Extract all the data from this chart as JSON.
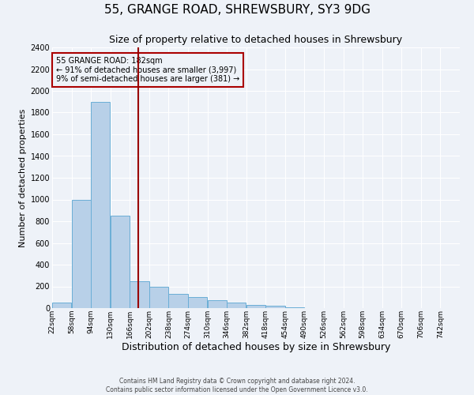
{
  "title": "55, GRANGE ROAD, SHREWSBURY, SY3 9DG",
  "subtitle": "Size of property relative to detached houses in Shrewsbury",
  "xlabel": "Distribution of detached houses by size in Shrewsbury",
  "ylabel": "Number of detached properties",
  "bin_labels": [
    "22sqm",
    "58sqm",
    "94sqm",
    "130sqm",
    "166sqm",
    "202sqm",
    "238sqm",
    "274sqm",
    "310sqm",
    "346sqm",
    "382sqm",
    "418sqm",
    "454sqm",
    "490sqm",
    "526sqm",
    "562sqm",
    "598sqm",
    "634sqm",
    "670sqm",
    "706sqm",
    "742sqm"
  ],
  "bin_edges": [
    22,
    58,
    94,
    130,
    166,
    202,
    238,
    274,
    310,
    346,
    382,
    418,
    454,
    490,
    526,
    562,
    598,
    634,
    670,
    706,
    742
  ],
  "bar_heights": [
    50,
    1000,
    1900,
    850,
    250,
    200,
    130,
    100,
    75,
    50,
    30,
    20,
    5,
    0,
    0,
    0,
    0,
    0,
    0,
    0
  ],
  "bar_color": "#b8d0e8",
  "bar_edgecolor": "#6aaed6",
  "vline_x": 182,
  "vline_color": "#990000",
  "ylim": [
    0,
    2400
  ],
  "yticks": [
    0,
    200,
    400,
    600,
    800,
    1000,
    1200,
    1400,
    1600,
    1800,
    2000,
    2200,
    2400
  ],
  "annotation_title": "55 GRANGE ROAD: 182sqm",
  "annotation_line1": "← 91% of detached houses are smaller (3,997)",
  "annotation_line2": "9% of semi-detached houses are larger (381) →",
  "annotation_box_color": "#aa0000",
  "footer_line1": "Contains HM Land Registry data © Crown copyright and database right 2024.",
  "footer_line2": "Contains public sector information licensed under the Open Government Licence v3.0.",
  "bg_color": "#eef2f8",
  "grid_color": "#ffffff",
  "title_fontsize": 11,
  "subtitle_fontsize": 9,
  "ylabel_fontsize": 8,
  "xlabel_fontsize": 9
}
